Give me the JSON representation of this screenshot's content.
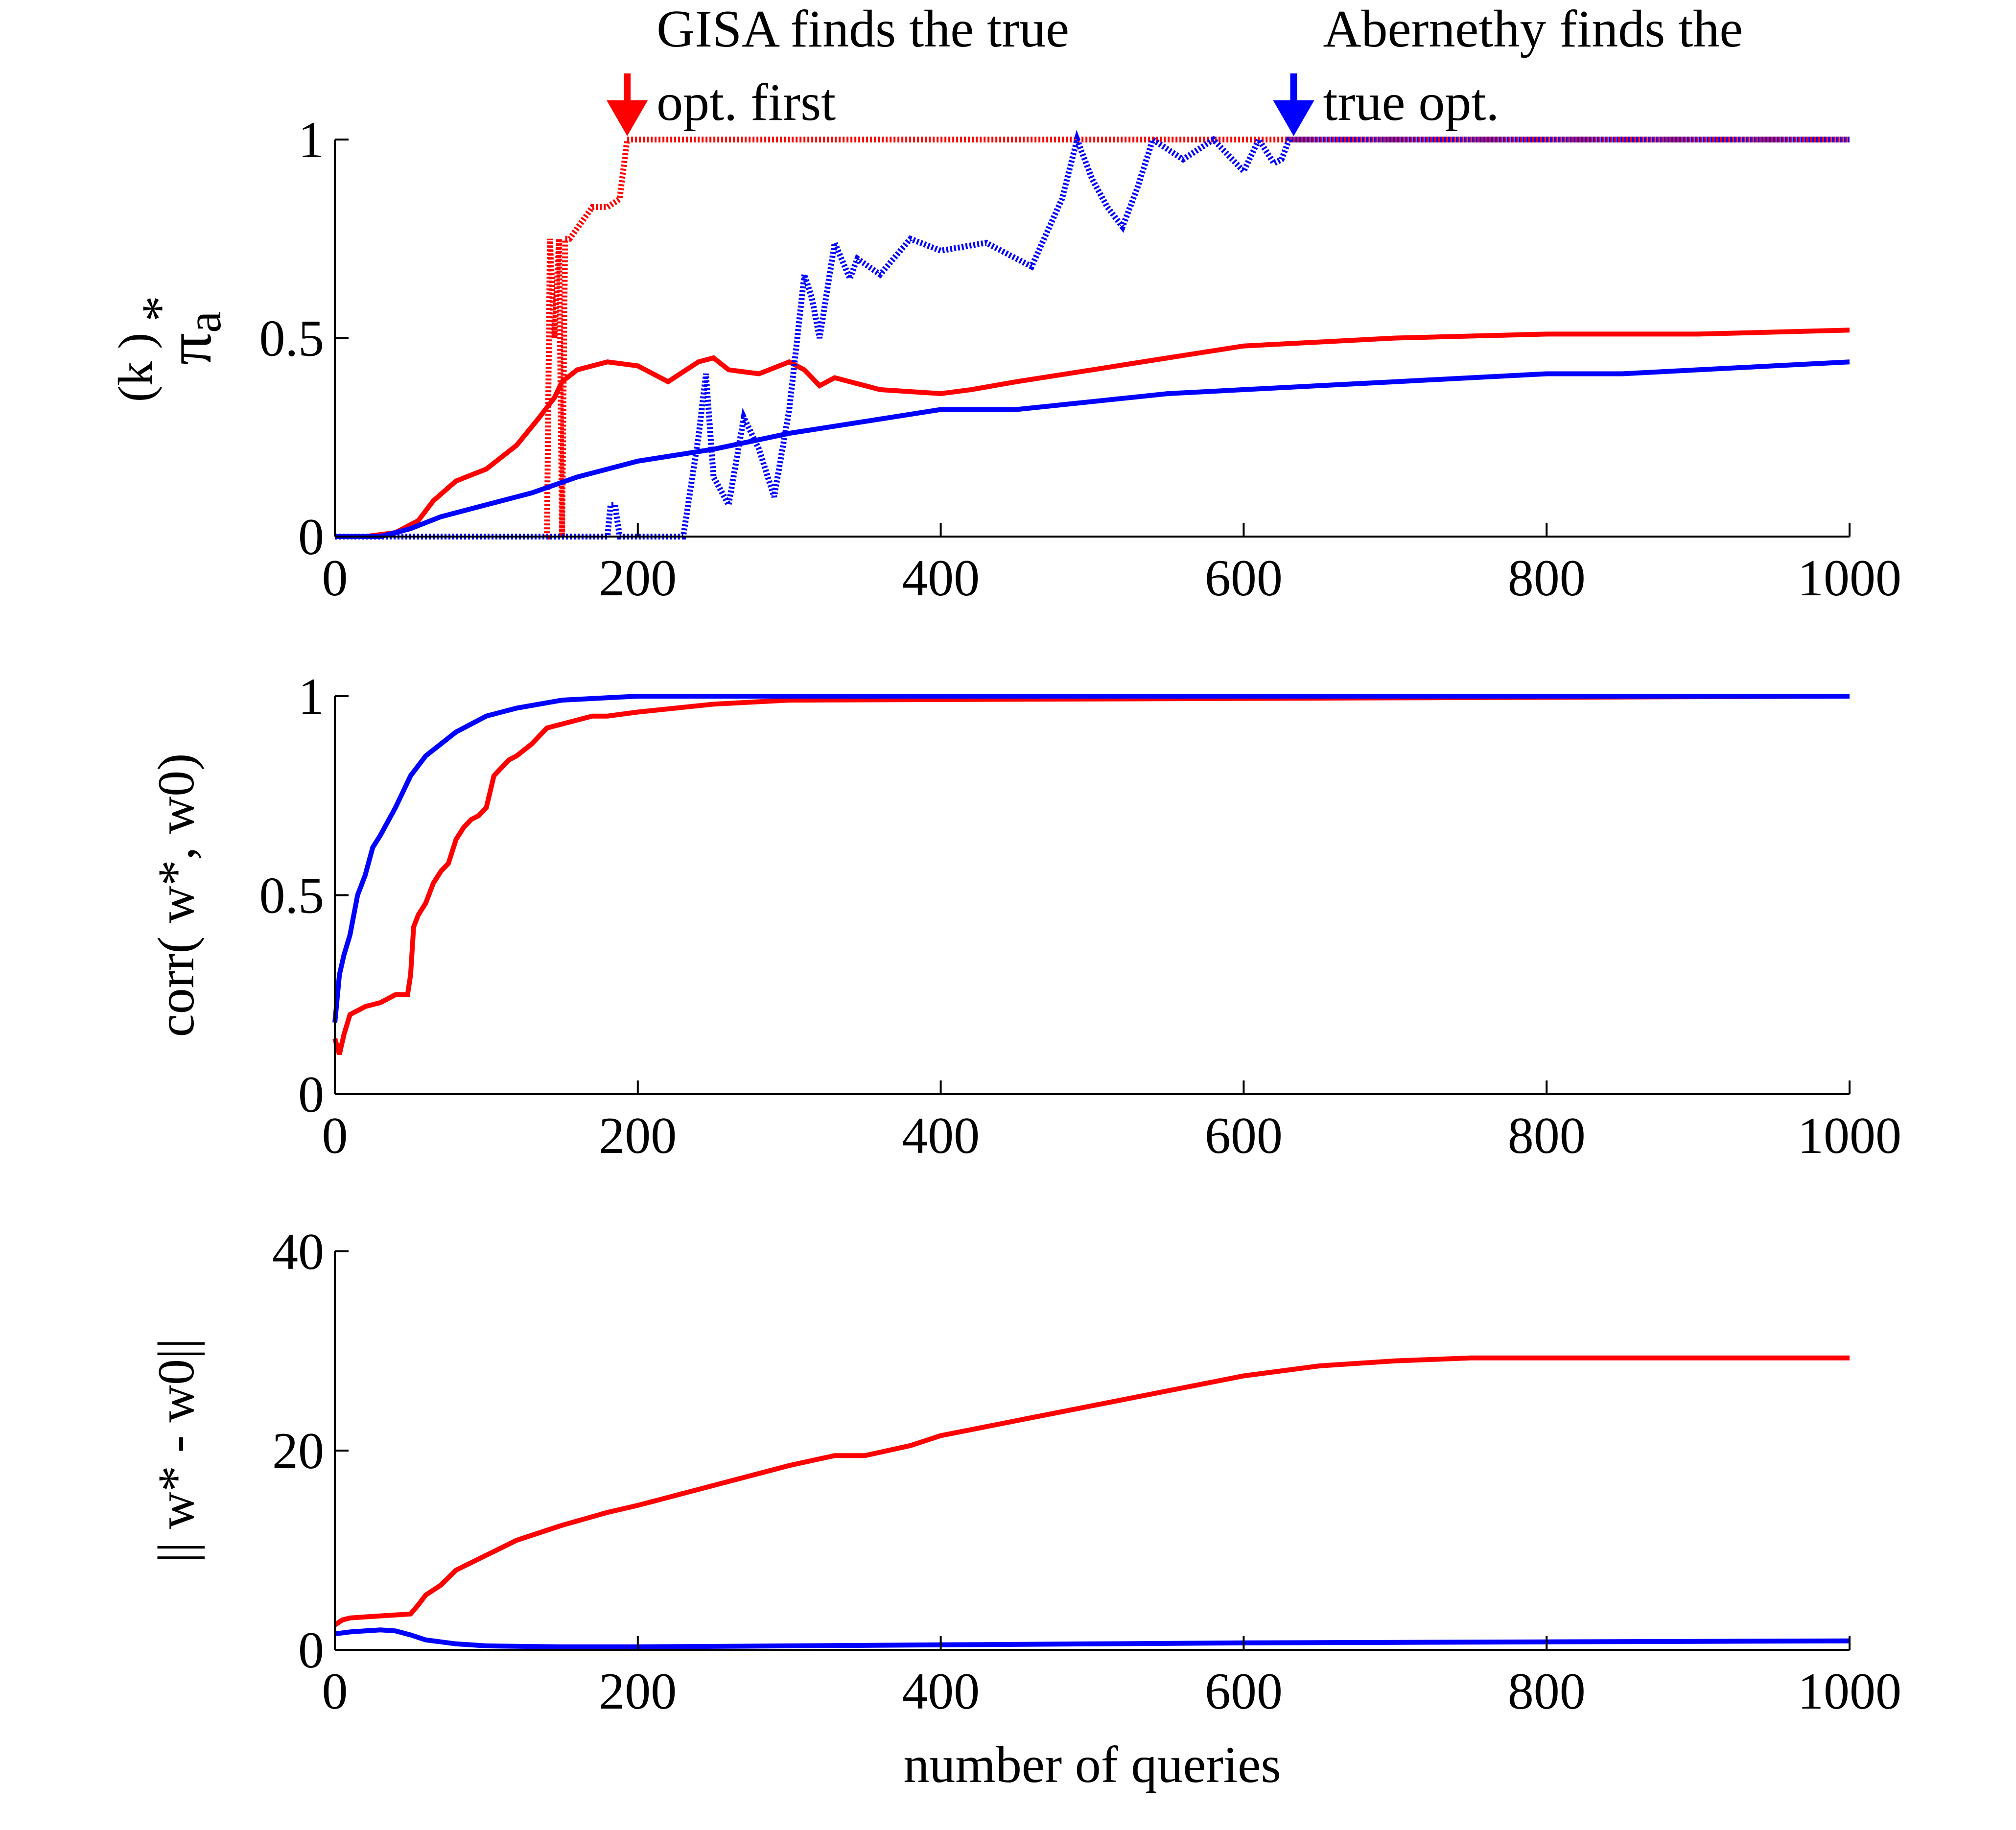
{
  "colors": {
    "gisa": "#ff0000",
    "abernethy": "#0000ff",
    "axis": "#000000"
  },
  "annotations": {
    "gisa": {
      "lines": [
        "GISA finds the true",
        "opt. first"
      ],
      "x": 193,
      "arrow": "down-arrow-icon"
    },
    "abernethy": {
      "lines": [
        "Abernethy finds the",
        "true opt."
      ],
      "x": 633,
      "arrow": "down-arrow-icon"
    }
  },
  "chart_data": [
    {
      "type": "line",
      "ylabel": {
        "symbol": "π",
        "sub": "a",
        "sup1": "*",
        "sup2": "(k )"
      },
      "xlabel": "",
      "xlim": [
        0,
        1000
      ],
      "ylim": [
        0,
        1
      ],
      "xticks": [
        "0",
        "200",
        "400",
        "600",
        "800",
        "1000"
      ],
      "yticks": [
        "0",
        "0.5",
        "1"
      ],
      "grid": false,
      "series": [
        {
          "color": "red",
          "style": "dotted-thick",
          "x": [
            0,
            140,
            142,
            145,
            148,
            150,
            152,
            155,
            170,
            180,
            188,
            193,
            195,
            200,
            1000
          ],
          "y": [
            0,
            0,
            0.75,
            0.5,
            0.75,
            0,
            0.75,
            0.75,
            0.83,
            0.83,
            0.85,
            1,
            1,
            1,
            1
          ]
        },
        {
          "color": "red",
          "style": "solid-thick",
          "x": [
            0,
            20,
            40,
            55,
            65,
            80,
            100,
            120,
            135,
            145,
            150,
            160,
            180,
            200,
            220,
            240,
            250,
            260,
            280,
            300,
            310,
            320,
            330,
            360,
            400,
            420,
            450,
            500,
            550,
            600,
            700,
            800,
            900,
            1000
          ],
          "y": [
            0,
            0,
            0.01,
            0.04,
            0.09,
            0.14,
            0.17,
            0.23,
            0.3,
            0.35,
            0.39,
            0.42,
            0.44,
            0.43,
            0.39,
            0.44,
            0.45,
            0.42,
            0.41,
            0.44,
            0.42,
            0.38,
            0.4,
            0.37,
            0.36,
            0.37,
            0.39,
            0.42,
            0.45,
            0.48,
            0.5,
            0.51,
            0.51,
            0.52
          ]
        },
        {
          "color": "blue",
          "style": "dotted-thick",
          "x": [
            0,
            180,
            182,
            185,
            188,
            230,
            232,
            240,
            245,
            250,
            260,
            270,
            280,
            290,
            300,
            310,
            315,
            320,
            330,
            340,
            345,
            360,
            380,
            400,
            430,
            460,
            480,
            490,
            500,
            510,
            520,
            530,
            540,
            560,
            580,
            600,
            610,
            620,
            625,
            630,
            633,
            640,
            1000
          ],
          "y": [
            0,
            0,
            0.08,
            0.08,
            0,
            0,
            0.05,
            0.25,
            0.41,
            0.15,
            0.08,
            0.3,
            0.22,
            0.1,
            0.32,
            0.66,
            0.6,
            0.5,
            0.74,
            0.65,
            0.7,
            0.66,
            0.75,
            0.72,
            0.74,
            0.68,
            0.85,
            1,
            0.9,
            0.83,
            0.78,
            0.88,
            1,
            0.95,
            1,
            0.92,
            1,
            0.94,
            0.95,
            1,
            1,
            1,
            1
          ]
        },
        {
          "color": "blue",
          "style": "solid-thick",
          "x": [
            0,
            30,
            50,
            70,
            100,
            130,
            160,
            200,
            250,
            300,
            350,
            400,
            450,
            500,
            550,
            600,
            650,
            700,
            750,
            800,
            850,
            900,
            950,
            1000
          ],
          "y": [
            0,
            0,
            0.02,
            0.05,
            0.08,
            0.11,
            0.15,
            0.19,
            0.22,
            0.26,
            0.29,
            0.32,
            0.32,
            0.34,
            0.36,
            0.37,
            0.38,
            0.39,
            0.4,
            0.41,
            0.41,
            0.42,
            0.43,
            0.44
          ]
        },
        {
          "color": "red",
          "style": "solid-thin",
          "x": [
            0,
            1000
          ],
          "y": [
            0,
            0
          ]
        }
      ]
    },
    {
      "type": "line",
      "ylabel": {
        "text": "corr( w*, w0)"
      },
      "xlabel": "",
      "xlim": [
        0,
        1000
      ],
      "ylim": [
        0,
        1
      ],
      "xticks": [
        "0",
        "200",
        "400",
        "600",
        "800",
        "1000"
      ],
      "yticks": [
        "0",
        "0.5",
        "1"
      ],
      "grid": false,
      "series": [
        {
          "color": "red",
          "style": "solid-thick",
          "x": [
            0,
            3,
            6,
            10,
            15,
            20,
            30,
            40,
            48,
            50,
            52,
            55,
            60,
            65,
            70,
            75,
            80,
            85,
            90,
            95,
            100,
            105,
            110,
            115,
            120,
            130,
            140,
            150,
            160,
            170,
            180,
            200,
            250,
            300,
            1000
          ],
          "y": [
            0.14,
            0.1,
            0.15,
            0.2,
            0.21,
            0.22,
            0.23,
            0.25,
            0.25,
            0.3,
            0.42,
            0.45,
            0.48,
            0.53,
            0.56,
            0.58,
            0.64,
            0.67,
            0.69,
            0.7,
            0.72,
            0.8,
            0.82,
            0.84,
            0.85,
            0.88,
            0.92,
            0.93,
            0.94,
            0.95,
            0.95,
            0.96,
            0.98,
            0.99,
            1
          ]
        },
        {
          "color": "blue",
          "style": "solid-thick",
          "x": [
            0,
            3,
            6,
            10,
            15,
            20,
            25,
            30,
            40,
            50,
            60,
            70,
            80,
            90,
            100,
            120,
            150,
            200,
            1000
          ],
          "y": [
            0.18,
            0.3,
            0.35,
            0.4,
            0.5,
            0.55,
            0.62,
            0.65,
            0.72,
            0.8,
            0.85,
            0.88,
            0.91,
            0.93,
            0.95,
            0.97,
            0.99,
            1,
            1
          ]
        }
      ]
    },
    {
      "type": "line",
      "ylabel": {
        "text": "|| w* - w0||"
      },
      "xlabel": "number of queries",
      "xlim": [
        0,
        1000
      ],
      "ylim": [
        0,
        40
      ],
      "xticks": [
        "0",
        "200",
        "400",
        "600",
        "800",
        "1000"
      ],
      "yticks": [
        "0",
        "20",
        "40"
      ],
      "grid": false,
      "series": [
        {
          "color": "red",
          "style": "solid-thick",
          "x": [
            0,
            5,
            10,
            20,
            30,
            40,
            50,
            55,
            60,
            70,
            80,
            100,
            120,
            150,
            180,
            200,
            250,
            300,
            330,
            350,
            380,
            400,
            450,
            500,
            550,
            600,
            650,
            700,
            750,
            800,
            900,
            1000
          ],
          "y": [
            2.5,
            3,
            3.2,
            3.3,
            3.4,
            3.5,
            3.6,
            4.5,
            5.5,
            6.5,
            8,
            9.5,
            11,
            12.5,
            13.8,
            14.5,
            16.5,
            18.5,
            19.5,
            19.5,
            20.5,
            21.5,
            23,
            24.5,
            26,
            27.5,
            28.5,
            29,
            29.3,
            29.3,
            29.3,
            29.3
          ]
        },
        {
          "color": "blue",
          "style": "solid-thick",
          "x": [
            0,
            10,
            20,
            30,
            40,
            50,
            60,
            80,
            100,
            150,
            200,
            300,
            400,
            500,
            600,
            800,
            1000
          ],
          "y": [
            1.6,
            1.8,
            1.9,
            2,
            1.9,
            1.5,
            1,
            0.6,
            0.4,
            0.3,
            0.3,
            0.4,
            0.5,
            0.6,
            0.7,
            0.8,
            0.9
          ]
        }
      ]
    }
  ]
}
